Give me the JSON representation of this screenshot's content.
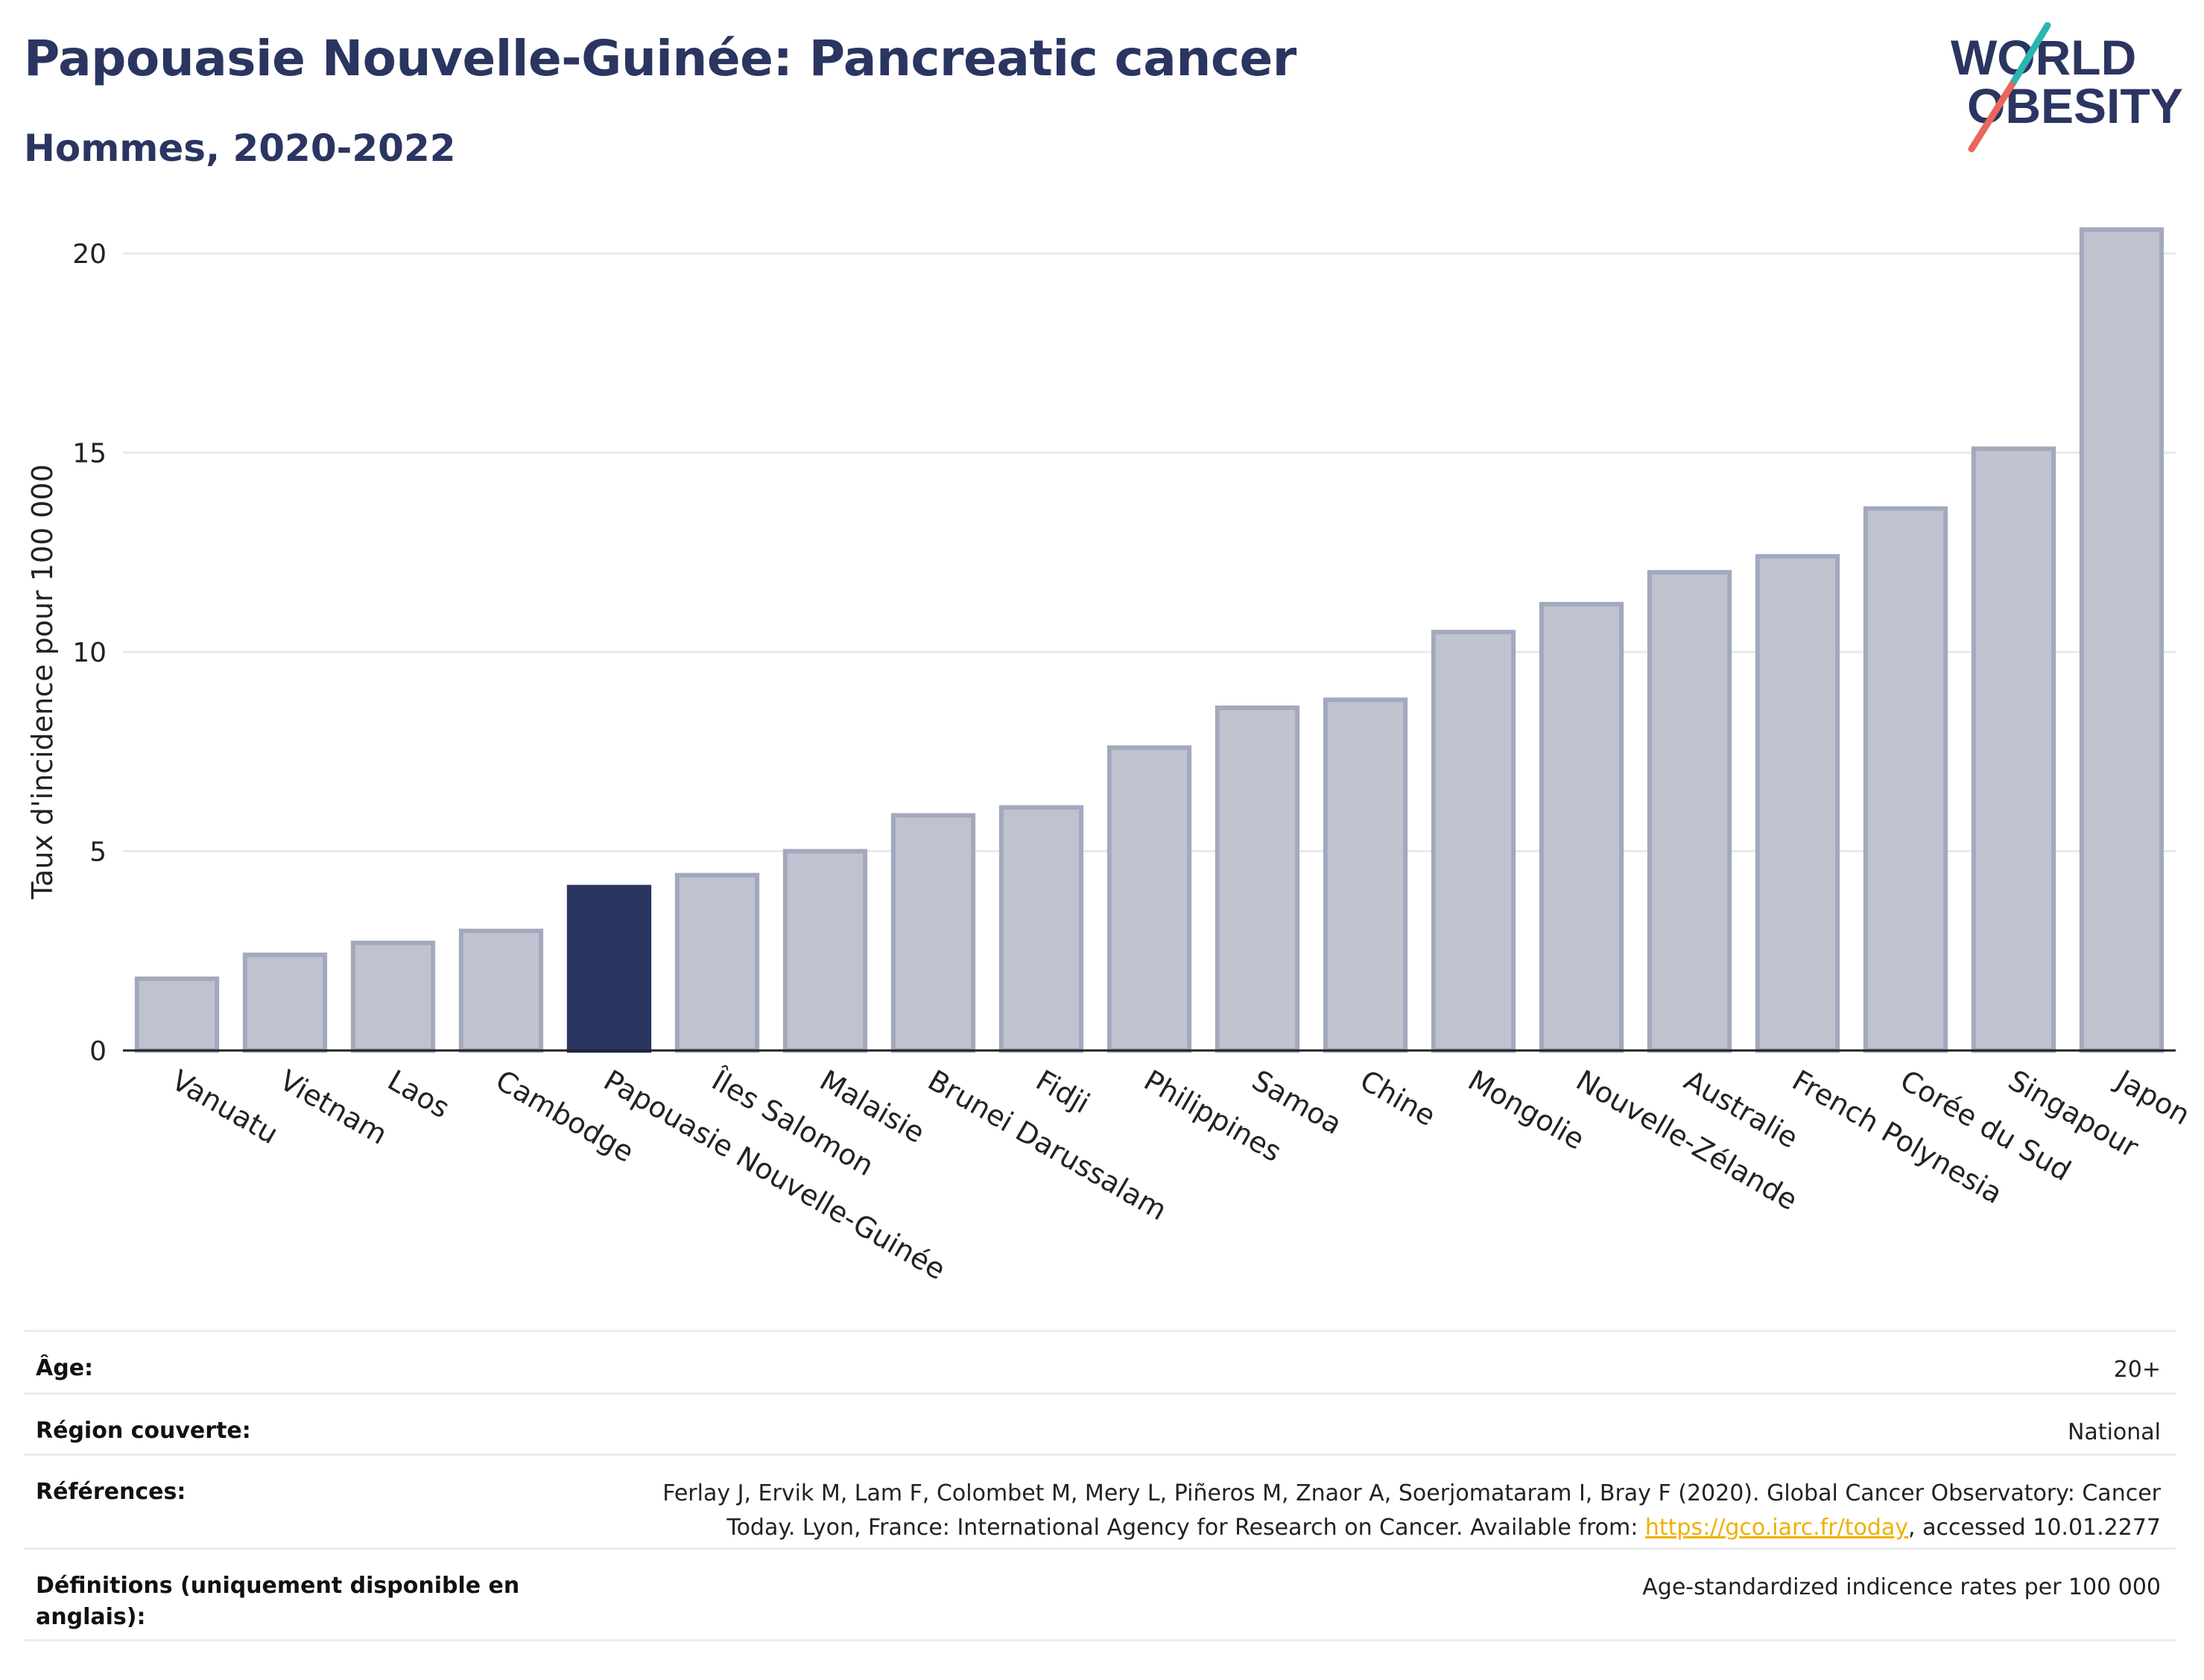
{
  "header": {
    "title": "Papouasie Nouvelle-Guinée: Pancreatic cancer",
    "subtitle": "Hommes, 2020-2022"
  },
  "logo": {
    "line1": "WORLD",
    "line2": "OBESITY",
    "colors": {
      "text": "#2b3561",
      "teal": "#2bb5b0",
      "coral": "#e8675a"
    }
  },
  "chart_data": {
    "type": "bar",
    "ylabel": "Taux d'incidence pour 100 000",
    "ylim": [
      0,
      21.5
    ],
    "yticks": [
      0,
      5,
      10,
      15,
      20
    ],
    "grid": true,
    "highlight": "Papouasie Nouvelle-Guinée",
    "colors": {
      "bar": "#bfc3d0",
      "bar_stroke": "#a3a9bd",
      "highlight": "#2b3561"
    },
    "categories": [
      "Vanuatu",
      "Vietnam",
      "Laos",
      "Cambodge",
      "Papouasie Nouvelle-Guinée",
      "Îles Salomon",
      "Malaisie",
      "Brunei Darussalam",
      "Fidji",
      "Philippines",
      "Samoa",
      "Chine",
      "Mongolie",
      "Nouvelle-Zélande",
      "Australie",
      "French Polynesia",
      "Corée du Sud",
      "Singapour",
      "Japon"
    ],
    "values": [
      1.8,
      2.4,
      2.7,
      3.0,
      4.1,
      4.4,
      5.0,
      5.9,
      6.1,
      7.6,
      8.6,
      8.8,
      10.5,
      11.2,
      12.0,
      12.4,
      13.6,
      15.1,
      20.6
    ]
  },
  "meta": [
    {
      "label": "Âge:",
      "value": "20+"
    },
    {
      "label": "Région couverte:",
      "value": "National"
    },
    {
      "label": "Références:",
      "value_before": "Ferlay J, Ervik M, Lam F, Colombet M, Mery L, Piñeros M, Znaor A, Soerjomataram I, Bray F (2020). Global Cancer Observatory: Cancer Today. Lyon, France: International Agency for Research on Cancer. Available from: ",
      "link": "https://gco.iarc.fr/today",
      "value_after": ", accessed 10.01.2277"
    },
    {
      "label": "Définitions (uniquement disponible en anglais):",
      "value": "Age-standardized indicence rates per 100 000"
    }
  ]
}
